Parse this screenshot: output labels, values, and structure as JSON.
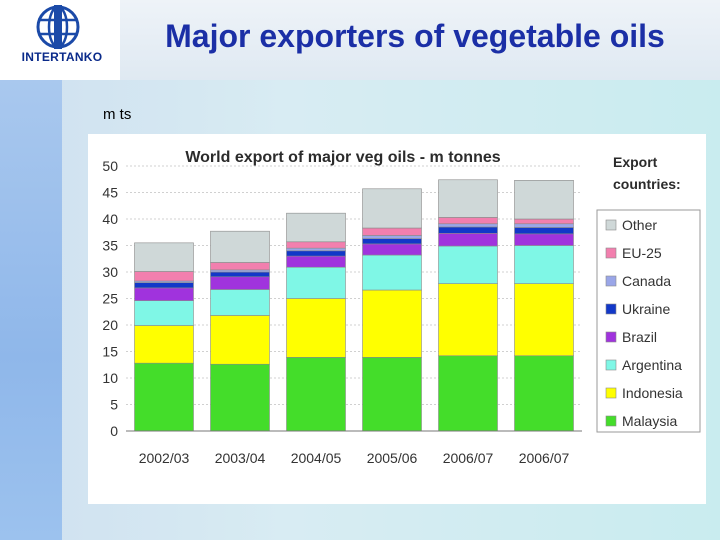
{
  "header": {
    "title": "Major exporters of vegetable oils",
    "logo_text": "INTERTANKO"
  },
  "slide": {
    "subtext": "m ts"
  },
  "colors": {
    "Malaysia": "#44dd2a",
    "Indonesia": "#ffff00",
    "Argentina": "#7ff7e6",
    "Brazil": "#a033dd",
    "Ukraine": "#1238c8",
    "Canada": "#9aa6e8",
    "EU-25": "#f27fae",
    "Other": "#cfd8d8",
    "title_blue": "#1b2fa6"
  },
  "chart_data": {
    "type": "bar",
    "stacked": true,
    "title": "World export of major veg oils - m tonnes",
    "legend_title": [
      "Export",
      "countries:"
    ],
    "legend_position": "right",
    "categories": [
      "2002/03",
      "2003/04",
      "2004/05",
      "2005/06",
      "2006/07",
      "2006/07"
    ],
    "ylim": [
      0,
      50
    ],
    "yticks": [
      0,
      5,
      10,
      15,
      20,
      25,
      30,
      35,
      40,
      45,
      50
    ],
    "grid": true,
    "series": [
      {
        "name": "Malaysia",
        "values": [
          12.8,
          12.6,
          13.9,
          13.9,
          14.2,
          14.2
        ]
      },
      {
        "name": "Indonesia",
        "values": [
          7.1,
          9.2,
          11.1,
          12.7,
          13.6,
          13.6
        ]
      },
      {
        "name": "Argentina",
        "values": [
          4.7,
          4.9,
          5.9,
          6.6,
          7.1,
          7.2
        ]
      },
      {
        "name": "Brazil",
        "values": [
          2.4,
          2.4,
          2.1,
          2.1,
          2.4,
          2.2
        ]
      },
      {
        "name": "Ukraine",
        "values": [
          1.0,
          0.9,
          1.0,
          1.0,
          1.2,
          1.2
        ]
      },
      {
        "name": "Canada",
        "values": [
          0.3,
          0.4,
          0.5,
          0.6,
          0.6,
          0.7
        ]
      },
      {
        "name": "EU-25",
        "values": [
          1.8,
          1.4,
          1.2,
          1.4,
          1.2,
          0.9
        ]
      },
      {
        "name": "Other",
        "values": [
          5.4,
          5.9,
          5.4,
          7.4,
          7.1,
          7.3
        ]
      }
    ]
  }
}
